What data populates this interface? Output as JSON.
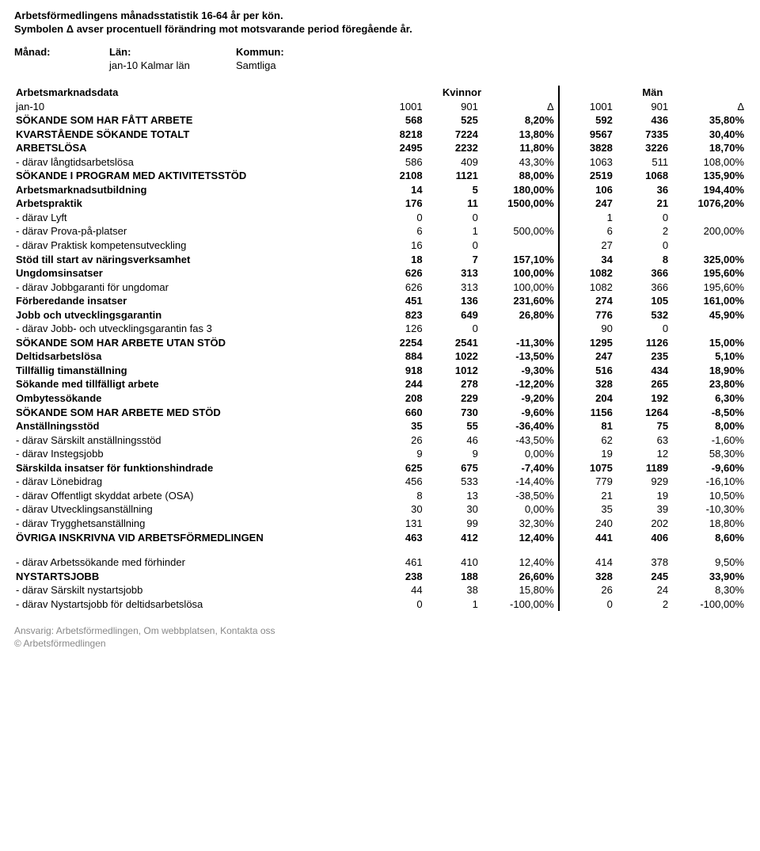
{
  "header": {
    "title": "Arbetsförmedlingens månadsstatistik 16-64 år per kön.",
    "subtitle": "Symbolen Δ avser procentuell förändring mot motsvarande period föregående år."
  },
  "filters": {
    "month_label": "Månad:",
    "region_label": "Län:",
    "municipality_label": "Kommun:",
    "month_value": "",
    "region_value": "jan-10 Kalmar län",
    "municipality_value": "Samtliga"
  },
  "table": {
    "data_label": "Arbetsmarknadsdata",
    "group_kvinnor": "Kvinnor",
    "group_man": "Män",
    "period_label": "jan-10",
    "delta": "Δ"
  },
  "rows": [
    {
      "bold": false,
      "label": "jan-10",
      "k1": "1001",
      "k2": "901",
      "kp": "Δ",
      "m1": "1001",
      "m2": "901",
      "mp": "Δ",
      "is_header": true
    },
    {
      "bold": true,
      "label": "SÖKANDE SOM HAR FÅTT ARBETE",
      "k1": "568",
      "k2": "525",
      "kp": "8,20%",
      "m1": "592",
      "m2": "436",
      "mp": "35,80%"
    },
    {
      "bold": true,
      "label": "KVARSTÅENDE SÖKANDE TOTALT",
      "k1": "8218",
      "k2": "7224",
      "kp": "13,80%",
      "m1": "9567",
      "m2": "7335",
      "mp": "30,40%"
    },
    {
      "bold": true,
      "label": "ARBETSLÖSA",
      "k1": "2495",
      "k2": "2232",
      "kp": "11,80%",
      "m1": "3828",
      "m2": "3226",
      "mp": "18,70%"
    },
    {
      "bold": false,
      "label": " - därav långtidsarbetslösa",
      "k1": "586",
      "k2": "409",
      "kp": "43,30%",
      "m1": "1063",
      "m2": "511",
      "mp": "108,00%"
    },
    {
      "bold": true,
      "label": "SÖKANDE I PROGRAM MED AKTIVITETSSTÖD",
      "k1": "2108",
      "k2": "1121",
      "kp": "88,00%",
      "m1": "2519",
      "m2": "1068",
      "mp": "135,90%"
    },
    {
      "bold": true,
      "label": "Arbetsmarknadsutbildning",
      "k1": "14",
      "k2": "5",
      "kp": "180,00%",
      "m1": "106",
      "m2": "36",
      "mp": "194,40%"
    },
    {
      "bold": true,
      "label": "Arbetspraktik",
      "k1": "176",
      "k2": "11",
      "kp": "1500,00%",
      "m1": "247",
      "m2": "21",
      "mp": "1076,20%"
    },
    {
      "bold": false,
      "label": " - därav Lyft",
      "k1": "0",
      "k2": "0",
      "kp": "",
      "m1": "1",
      "m2": "0",
      "mp": ""
    },
    {
      "bold": false,
      "label": " - därav Prova-på-platser",
      "k1": "6",
      "k2": "1",
      "kp": "500,00%",
      "m1": "6",
      "m2": "2",
      "mp": "200,00%"
    },
    {
      "bold": false,
      "label": " - därav Praktisk kompetensutveckling",
      "k1": "16",
      "k2": "0",
      "kp": "",
      "m1": "27",
      "m2": "0",
      "mp": ""
    },
    {
      "bold": true,
      "label": "Stöd till start av näringsverksamhet",
      "k1": "18",
      "k2": "7",
      "kp": "157,10%",
      "m1": "34",
      "m2": "8",
      "mp": "325,00%"
    },
    {
      "bold": true,
      "label": "Ungdomsinsatser",
      "k1": "626",
      "k2": "313",
      "kp": "100,00%",
      "m1": "1082",
      "m2": "366",
      "mp": "195,60%"
    },
    {
      "bold": false,
      "label": " - därav Jobbgaranti för ungdomar",
      "k1": "626",
      "k2": "313",
      "kp": "100,00%",
      "m1": "1082",
      "m2": "366",
      "mp": "195,60%"
    },
    {
      "bold": true,
      "label": "Förberedande insatser",
      "k1": "451",
      "k2": "136",
      "kp": "231,60%",
      "m1": "274",
      "m2": "105",
      "mp": "161,00%"
    },
    {
      "bold": true,
      "label": "Jobb  och utvecklingsgarantin",
      "k1": "823",
      "k2": "649",
      "kp": "26,80%",
      "m1": "776",
      "m2": "532",
      "mp": "45,90%"
    },
    {
      "bold": false,
      "label": " - därav Jobb- och utvecklingsgarantin fas 3",
      "k1": "126",
      "k2": "0",
      "kp": "",
      "m1": "90",
      "m2": "0",
      "mp": ""
    },
    {
      "bold": true,
      "label": "SÖKANDE SOM HAR ARBETE UTAN STÖD",
      "k1": "2254",
      "k2": "2541",
      "kp": "-11,30%",
      "m1": "1295",
      "m2": "1126",
      "mp": "15,00%"
    },
    {
      "bold": true,
      "label": "Deltidsarbetslösa",
      "k1": "884",
      "k2": "1022",
      "kp": "-13,50%",
      "m1": "247",
      "m2": "235",
      "mp": "5,10%"
    },
    {
      "bold": true,
      "label": "Tillfällig timanställning",
      "k1": "918",
      "k2": "1012",
      "kp": "-9,30%",
      "m1": "516",
      "m2": "434",
      "mp": "18,90%"
    },
    {
      "bold": true,
      "label": "Sökande med tillfälligt arbete",
      "k1": "244",
      "k2": "278",
      "kp": "-12,20%",
      "m1": "328",
      "m2": "265",
      "mp": "23,80%"
    },
    {
      "bold": true,
      "label": "Ombytessökande",
      "k1": "208",
      "k2": "229",
      "kp": "-9,20%",
      "m1": "204",
      "m2": "192",
      "mp": "6,30%"
    },
    {
      "bold": true,
      "label": "SÖKANDE SOM HAR ARBETE MED STÖD",
      "k1": "660",
      "k2": "730",
      "kp": "-9,60%",
      "m1": "1156",
      "m2": "1264",
      "mp": "-8,50%"
    },
    {
      "bold": true,
      "label": "Anställningsstöd",
      "k1": "35",
      "k2": "55",
      "kp": "-36,40%",
      "m1": "81",
      "m2": "75",
      "mp": "8,00%"
    },
    {
      "bold": false,
      "label": " - därav Särskilt anställningsstöd",
      "k1": "26",
      "k2": "46",
      "kp": "-43,50%",
      "m1": "62",
      "m2": "63",
      "mp": "-1,60%"
    },
    {
      "bold": false,
      "label": " - därav Instegsjobb",
      "k1": "9",
      "k2": "9",
      "kp": "0,00%",
      "m1": "19",
      "m2": "12",
      "mp": "58,30%"
    },
    {
      "bold": true,
      "label": "Särskilda insatser för funktionshindrade",
      "k1": "625",
      "k2": "675",
      "kp": "-7,40%",
      "m1": "1075",
      "m2": "1189",
      "mp": "-9,60%"
    },
    {
      "bold": false,
      "label": " - därav Lönebidrag",
      "k1": "456",
      "k2": "533",
      "kp": "-14,40%",
      "m1": "779",
      "m2": "929",
      "mp": "-16,10%"
    },
    {
      "bold": false,
      "label": " - därav Offentligt skyddat arbete (OSA)",
      "k1": "8",
      "k2": "13",
      "kp": "-38,50%",
      "m1": "21",
      "m2": "19",
      "mp": "10,50%"
    },
    {
      "bold": false,
      "label": " - därav Utvecklingsanställning",
      "k1": "30",
      "k2": "30",
      "kp": "0,00%",
      "m1": "35",
      "m2": "39",
      "mp": "-10,30%"
    },
    {
      "bold": false,
      "label": " - därav Trygghetsanställning",
      "k1": "131",
      "k2": "99",
      "kp": "32,30%",
      "m1": "240",
      "m2": "202",
      "mp": "18,80%"
    },
    {
      "bold": true,
      "label": "ÖVRIGA INSKRIVNA VID ARBETSFÖRMEDLINGEN",
      "k1": "463",
      "k2": "412",
      "kp": "12,40%",
      "m1": "441",
      "m2": "406",
      "mp": "8,60%"
    }
  ],
  "rows2": [
    {
      "bold": false,
      "label": " - därav Arbetssökande med förhinder",
      "k1": "461",
      "k2": "410",
      "kp": "12,40%",
      "m1": "414",
      "m2": "378",
      "mp": "9,50%"
    },
    {
      "bold": true,
      "label": "NYSTARTSJOBB",
      "k1": "238",
      "k2": "188",
      "kp": "26,60%",
      "m1": "328",
      "m2": "245",
      "mp": "33,90%"
    },
    {
      "bold": false,
      "label": " - därav Särskilt nystartsjobb",
      "k1": "44",
      "k2": "38",
      "kp": "15,80%",
      "m1": "26",
      "m2": "24",
      "mp": "8,30%"
    },
    {
      "bold": false,
      "label": " - därav Nystartsjobb för deltidsarbetslösa",
      "k1": "0",
      "k2": "1",
      "kp": "-100,00%",
      "m1": "0",
      "m2": "2",
      "mp": "-100,00%"
    }
  ],
  "footer": {
    "line1": "Ansvarig: Arbetsförmedlingen,  Om webbplatsen,  Kontakta oss",
    "line2": "© Arbetsförmedlingen"
  }
}
